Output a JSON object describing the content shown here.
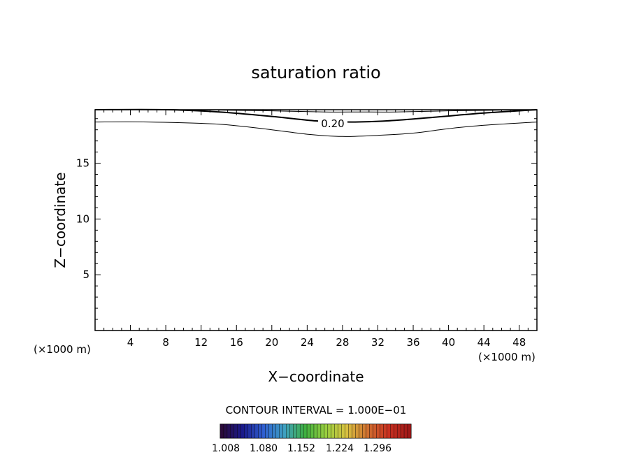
{
  "chart_data": {
    "type": "contour",
    "title": "saturation ratio",
    "xlabel": "X−coordinate",
    "ylabel": "Z−coordinate",
    "x_unit_left": "(×1000 m)",
    "x_unit_right": "(×1000 m)",
    "xlim": [
      0,
      50
    ],
    "ylim": [
      0,
      19.8
    ],
    "x_ticks": [
      4,
      8,
      12,
      16,
      20,
      24,
      28,
      32,
      36,
      40,
      44,
      48
    ],
    "x_tick_labels": [
      "4",
      "8",
      "12",
      "16",
      "20",
      "24",
      "28",
      "32",
      "36",
      "40",
      "44",
      "48"
    ],
    "y_ticks": [
      5,
      10,
      15
    ],
    "y_tick_labels": [
      "5",
      "10",
      "15"
    ],
    "contour_interval_text": "CONTOUR INTERVAL = 1.000E−01",
    "contour_label": "0.20",
    "contours": [
      {
        "name": "upper",
        "x": [
          0,
          10,
          20,
          26,
          30,
          34,
          40,
          50
        ],
        "z": [
          19.8,
          19.8,
          19.7,
          19.6,
          19.6,
          19.6,
          19.7,
          19.8
        ],
        "width": 1
      },
      {
        "name": "labeled",
        "x": [
          0,
          8,
          14,
          20,
          25,
          29,
          33,
          38,
          44,
          50
        ],
        "z": [
          19.8,
          19.8,
          19.6,
          19.2,
          18.8,
          18.7,
          18.8,
          19.1,
          19.5,
          19.8
        ],
        "width": 2
      },
      {
        "name": "lower",
        "x": [
          0,
          6,
          14,
          20,
          24,
          28,
          32,
          36,
          40,
          44,
          50
        ],
        "z": [
          18.7,
          18.7,
          18.5,
          18.0,
          17.6,
          17.4,
          17.5,
          17.7,
          18.1,
          18.4,
          18.7
        ],
        "width": 1
      }
    ],
    "colorbar": {
      "tick_labels": [
        "1.008",
        "1.080",
        "1.152",
        "1.224",
        "1.296"
      ],
      "stops": [
        "#2a0a3a",
        "#1a1a8a",
        "#2f5fd0",
        "#3fa0c0",
        "#3fb040",
        "#9ad040",
        "#d8c040",
        "#d07030",
        "#c83020",
        "#a01818"
      ]
    }
  }
}
